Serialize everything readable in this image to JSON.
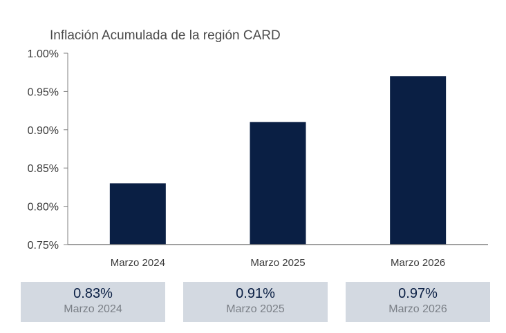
{
  "chart_data": {
    "type": "bar",
    "title": "Inflación Acumulada de la región CARD",
    "categories": [
      "Marzo 2024",
      "Marzo 2025",
      "Marzo 2026"
    ],
    "values": [
      0.83,
      0.91,
      0.97
    ],
    "unit": "%",
    "ylim": [
      0.75,
      1.0
    ],
    "yticks": [
      "0.75%",
      "0.80%",
      "0.85%",
      "0.90%",
      "0.95%",
      "1.00%"
    ],
    "ytick_values": [
      0.75,
      0.8,
      0.85,
      0.9,
      0.95,
      1.0
    ],
    "bar_color": "#0a1f44",
    "grid": false,
    "xlabel": "",
    "ylabel": ""
  },
  "summary": [
    {
      "value": "0.83%",
      "label": "Marzo 2024"
    },
    {
      "value": "0.91%",
      "label": "Marzo 2025"
    },
    {
      "value": "0.97%",
      "label": "Marzo 2026"
    }
  ],
  "colors": {
    "bar": "#0a1f44",
    "summary_background": "#d3d9e1",
    "axis": "#808080"
  }
}
